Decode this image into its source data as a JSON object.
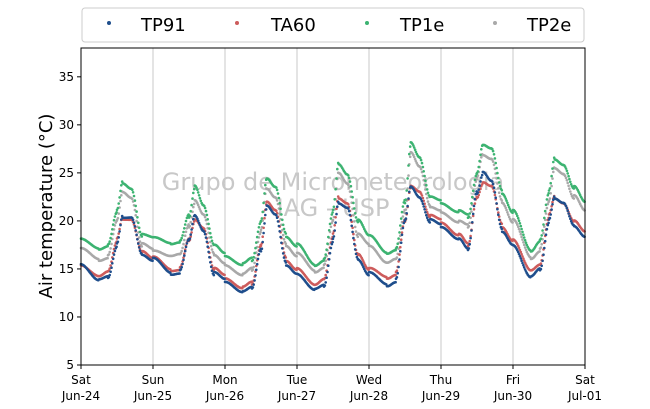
{
  "chart_data": {
    "type": "scatter",
    "title": "",
    "xlabel": "",
    "ylabel": "Air temperature (°C)",
    "ylim": [
      5,
      38
    ],
    "yticks": [
      5,
      10,
      15,
      20,
      25,
      30,
      35
    ],
    "xlim": [
      "2018-06-24T00:00",
      "2018-07-01T00:00"
    ],
    "grid": "vertical lines at day boundaries",
    "legend_position": "top, outside plot, single row",
    "watermark": [
      "Grupo de Micrometeorologia",
      "IAG - USP"
    ],
    "x_tick_labels": [
      {
        "day": "Sat",
        "date": "Jun-24"
      },
      {
        "day": "Sun",
        "date": "Jun-25"
      },
      {
        "day": "Mon",
        "date": "Jun-26"
      },
      {
        "day": "Tue",
        "date": "Jun-27"
      },
      {
        "day": "Wed",
        "date": "Jun-28"
      },
      {
        "day": "Thu",
        "date": "Jun-29"
      },
      {
        "day": "Fri",
        "date": "Jun-30"
      },
      {
        "day": "Sat",
        "date": "Jul-01"
      }
    ],
    "series": [
      {
        "name": "TP91",
        "color": "#1f4e8c",
        "x_days": [
          0,
          0.25,
          0.375,
          0.5,
          0.58,
          0.7,
          0.85,
          1,
          1.25,
          1.375,
          1.5,
          1.58,
          1.7,
          1.85,
          2,
          2.25,
          2.375,
          2.5,
          2.58,
          2.7,
          2.85,
          3,
          3.25,
          3.375,
          3.5,
          3.58,
          3.7,
          3.85,
          4,
          4.25,
          4.375,
          4.5,
          4.58,
          4.7,
          4.85,
          5,
          5.25,
          5.375,
          5.5,
          5.58,
          5.7,
          5.85,
          6,
          6.25,
          6.375,
          6.5,
          6.58,
          6.7,
          6.85,
          7
        ],
        "y": [
          15.5,
          14,
          14.2,
          17.5,
          20.5,
          20.5,
          16.5,
          16,
          14.5,
          14.7,
          18,
          20.5,
          19,
          14.5,
          13.8,
          12.5,
          13,
          17,
          21.5,
          20.5,
          15.5,
          14.5,
          13,
          13.3,
          18,
          22,
          21.5,
          16,
          14.5,
          13.3,
          13.8,
          20,
          23.5,
          22.5,
          20,
          19.5,
          18,
          17,
          23,
          25,
          24,
          19,
          17.5,
          14.3,
          15,
          20,
          22.5,
          22,
          19.5,
          18.5
        ]
      },
      {
        "name": "TA60",
        "color": "#cd5c5c",
        "x_days": [
          0,
          0.25,
          0.375,
          0.5,
          0.58,
          0.7,
          0.85,
          1,
          1.25,
          1.375,
          1.5,
          1.58,
          1.7,
          1.85,
          2,
          2.25,
          2.375,
          2.5,
          2.58,
          2.7,
          2.85,
          3,
          3.25,
          3.375,
          3.5,
          3.58,
          3.7,
          3.85,
          4,
          4.25,
          4.375,
          4.5,
          4.58,
          4.7,
          4.85,
          5,
          5.25,
          5.375,
          5.5,
          5.58,
          5.7,
          5.85,
          6,
          6.25,
          6.375,
          6.5,
          6.58,
          6.7,
          6.85,
          7
        ],
        "y": [
          15.3,
          14.4,
          14.8,
          18,
          20.3,
          20.3,
          16.8,
          16.2,
          14.8,
          15,
          18,
          20,
          19.2,
          15,
          14.2,
          13,
          13.5,
          17.5,
          22,
          21,
          16,
          15,
          13.5,
          14,
          18.5,
          22.5,
          22,
          16.5,
          15,
          14,
          14.5,
          20,
          23.5,
          23,
          20.5,
          20,
          18.5,
          17.5,
          22.5,
          24,
          23.5,
          19.5,
          18,
          15,
          15.5,
          20.5,
          22.5,
          22,
          20,
          19
        ]
      },
      {
        "name": "TP1e",
        "color": "#3cb371",
        "x_days": [
          0,
          0.25,
          0.375,
          0.5,
          0.58,
          0.7,
          0.85,
          1,
          1.25,
          1.375,
          1.5,
          1.58,
          1.7,
          1.85,
          2,
          2.25,
          2.375,
          2.5,
          2.58,
          2.7,
          2.85,
          3,
          3.25,
          3.375,
          3.5,
          3.58,
          3.7,
          3.85,
          4,
          4.25,
          4.375,
          4.5,
          4.58,
          4.7,
          4.85,
          5,
          5.25,
          5.375,
          5.5,
          5.58,
          5.7,
          5.85,
          6,
          6.25,
          6.375,
          6.5,
          6.58,
          6.7,
          6.85,
          7
        ],
        "y": [
          18,
          17.2,
          17.5,
          21,
          24,
          23.5,
          18.5,
          18.3,
          17.5,
          17.8,
          20.5,
          23.5,
          21.5,
          17.5,
          16.5,
          15.5,
          16,
          20,
          24.5,
          23.5,
          18.5,
          17.5,
          15.5,
          16,
          21,
          26,
          25,
          20,
          18.5,
          16.5,
          17,
          22,
          28,
          26.5,
          22.5,
          22,
          21,
          20.5,
          25,
          28,
          27.5,
          23,
          21,
          17,
          18,
          23,
          26.5,
          26,
          23.5,
          22
        ]
      },
      {
        "name": "TP2e",
        "color": "#a9a9a9",
        "x_days": [
          0,
          0.25,
          0.375,
          0.5,
          0.58,
          0.7,
          0.85,
          1,
          1.25,
          1.375,
          1.5,
          1.58,
          1.7,
          1.85,
          2,
          2.25,
          2.375,
          2.5,
          2.58,
          2.7,
          2.85,
          3,
          3.25,
          3.375,
          3.5,
          3.58,
          3.7,
          3.85,
          4,
          4.25,
          4.375,
          4.5,
          4.58,
          4.7,
          4.85,
          5,
          5.25,
          5.375,
          5.5,
          5.58,
          5.7,
          5.85,
          6,
          6.25,
          6.375,
          6.5,
          6.58,
          6.7,
          6.85,
          7
        ],
        "y": [
          17,
          16,
          16.3,
          20,
          23,
          22.5,
          17.5,
          17,
          16.2,
          16.5,
          19.5,
          22,
          20.5,
          16.5,
          15.5,
          14.5,
          15,
          19,
          23.5,
          22.5,
          17.5,
          16.5,
          14.8,
          15.3,
          20,
          25,
          24,
          18.5,
          17.5,
          15.5,
          16,
          21,
          27,
          25.5,
          21.5,
          21,
          20,
          19.5,
          24.5,
          27,
          26.5,
          22,
          20,
          16.2,
          17,
          22,
          25.5,
          25,
          22.5,
          21
        ]
      }
    ]
  }
}
